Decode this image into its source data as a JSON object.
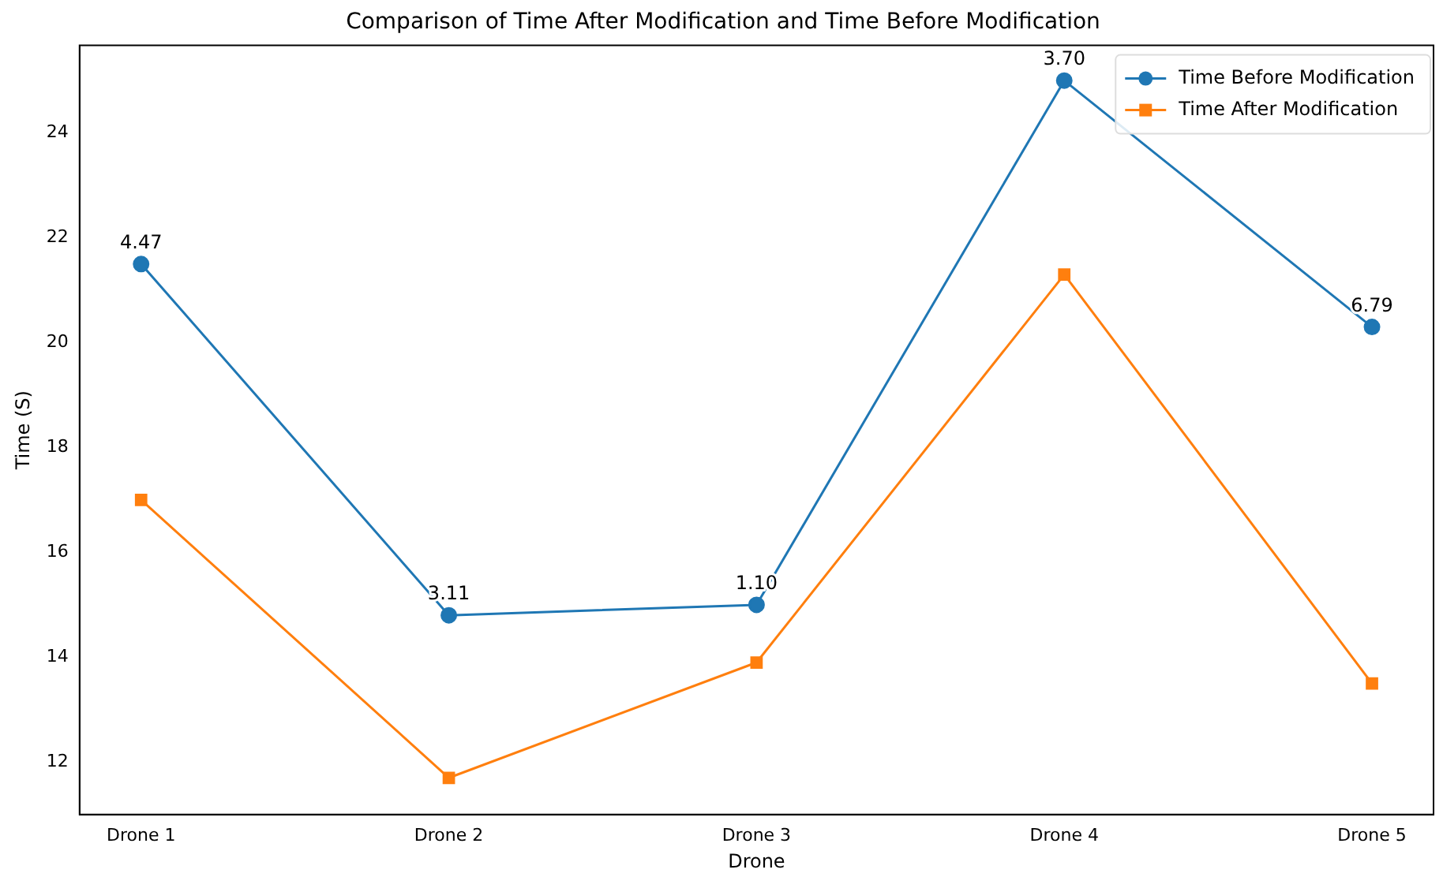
{
  "chart_data": {
    "type": "line",
    "title": "Comparison of Time After Modification and Time Before Modification",
    "xlabel": "Drone",
    "ylabel": "Time (S)",
    "categories": [
      "Drone 1",
      "Drone 2",
      "Drone 3",
      "Drone 4",
      "Drone 5"
    ],
    "series": [
      {
        "name": "Time Before Modification",
        "color": "#1f77b4",
        "marker": "circle",
        "values": [
          21.5,
          14.8,
          15.0,
          25.0,
          20.3
        ]
      },
      {
        "name": "Time After Modification",
        "color": "#ff7f0e",
        "marker": "square",
        "values": [
          17.0,
          11.7,
          13.9,
          21.3,
          13.5
        ]
      }
    ],
    "annotations": [
      {
        "text": "4.47",
        "x": "Drone 1",
        "y": 21.5
      },
      {
        "text": "3.11",
        "x": "Drone 2",
        "y": 14.8
      },
      {
        "text": "1.10",
        "x": "Drone 3",
        "y": 15.0
      },
      {
        "text": "3.70",
        "x": "Drone 4",
        "y": 25.0
      },
      {
        "text": "6.79",
        "x": "Drone 5",
        "y": 20.3
      }
    ],
    "ylim": [
      11.0,
      25.67
    ],
    "yticks": [
      12,
      14,
      16,
      18,
      20,
      22,
      24
    ],
    "grid": false,
    "legend": "top right"
  }
}
